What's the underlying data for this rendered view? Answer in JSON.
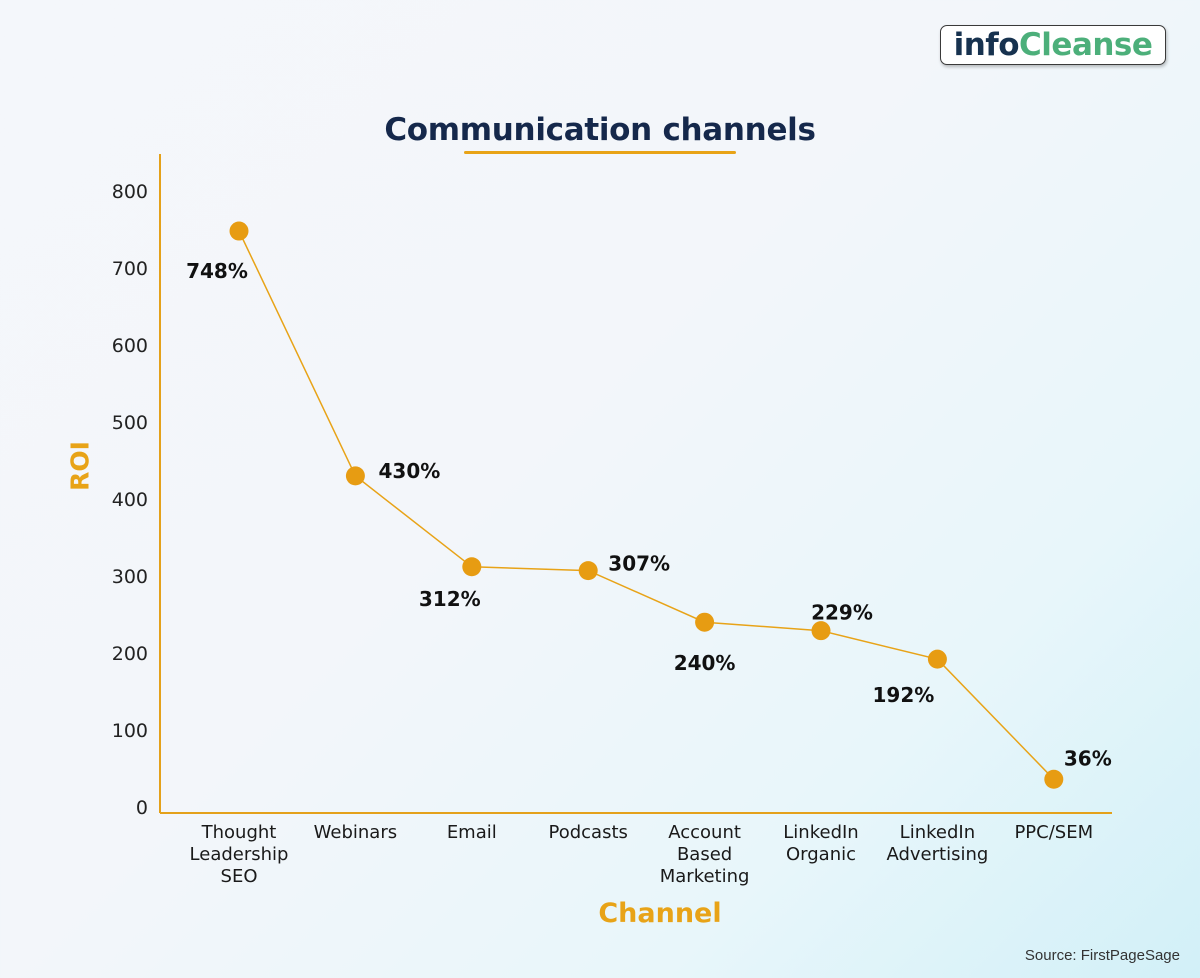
{
  "brand": {
    "logo_part1": "info",
    "logo_part2": "Cleanse"
  },
  "source": "Source: FirstPageSage",
  "chart_data": {
    "type": "line",
    "title": "Communication channels",
    "xlabel": "Channel",
    "ylabel": "ROI",
    "ylim": [
      0,
      800
    ],
    "yticks": [
      0,
      100,
      200,
      300,
      400,
      500,
      600,
      700,
      800
    ],
    "grid": false,
    "categories": [
      [
        "Thought",
        "Leadership",
        "SEO"
      ],
      [
        "Webinars"
      ],
      [
        "Email"
      ],
      [
        "Podcasts"
      ],
      [
        "Account",
        "Based",
        "Marketing"
      ],
      [
        "LinkedIn",
        "Organic"
      ],
      [
        "LinkedIn",
        "Advertising"
      ],
      [
        "PPC/SEM"
      ]
    ],
    "values": [
      748,
      430,
      312,
      307,
      240,
      229,
      192,
      36
    ],
    "data_labels": [
      "748%",
      "430%",
      "312%",
      "307%",
      "240%",
      "229%",
      "192%",
      "36%"
    ],
    "colors": {
      "line": "#e8a317",
      "marker": "#e79c12",
      "axis": "#e4a11a",
      "title": "#15284b",
      "label": "#e8a317"
    }
  }
}
